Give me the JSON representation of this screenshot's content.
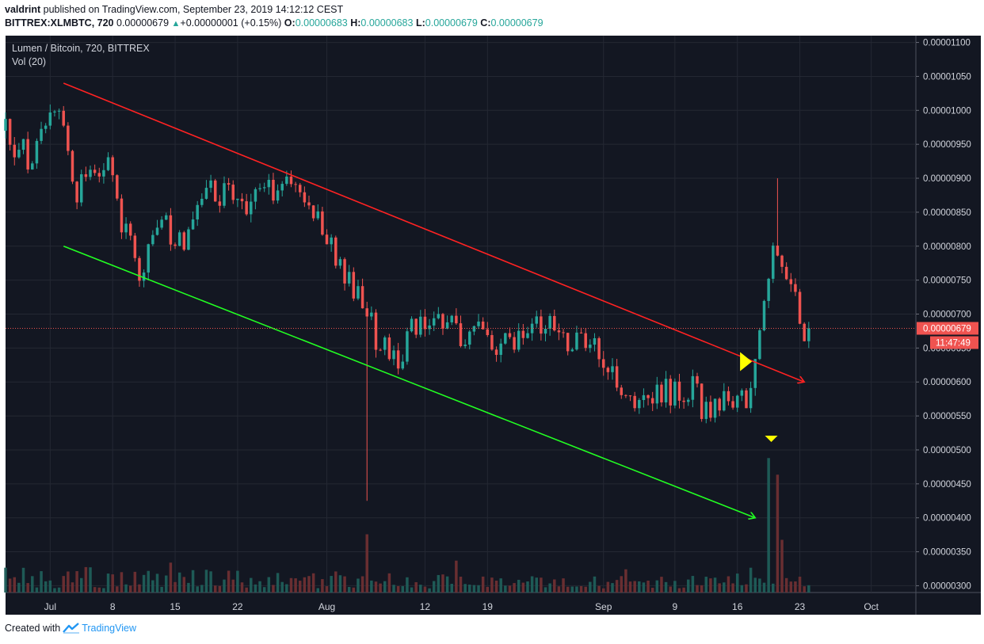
{
  "header": {
    "author": "valdrint",
    "published": "published on TradingView.com, September 23, 2019 14:12:12 CEST",
    "symbol": "BITTREX:XLMBTC, 720",
    "last": "0.00000679",
    "change": "+0.00000001 (+0.15%)",
    "o_label": "O:",
    "o_val": "0.00000683",
    "h_label": "H:",
    "h_val": "0.00000683",
    "l_label": "L:",
    "l_val": "0.00000679",
    "c_label": "C:",
    "c_val": "0.00000679"
  },
  "legend": {
    "title": "Lumen / Bitcoin, 720, BITTREX",
    "vol": "Vol (20)"
  },
  "price_badge": "0.00000679",
  "countdown": "11:47:49",
  "footer": {
    "created": "Created with",
    "brand": "TradingView"
  },
  "colors": {
    "bg": "#131722",
    "up": "#26a69a",
    "down": "#ef5350",
    "grid": "#242833",
    "trend_upper": "#ff2222",
    "trend_lower": "#22ff22",
    "marker": "#ffff00"
  },
  "chart_data": {
    "type": "candlestick",
    "yaxis": {
      "ticks": [
        "0.00001100",
        "0.00001050",
        "0.00001000",
        "0.00000950",
        "0.00000900",
        "0.00000850",
        "0.00000800",
        "0.00000750",
        "0.00000700",
        "0.00000650",
        "0.00000600",
        "0.00000550",
        "0.00000500",
        "0.00000450",
        "0.00000400",
        "0.00000350",
        "0.00000300"
      ],
      "range": [
        2.9e-06,
        1.11e-05
      ]
    },
    "xaxis": {
      "labels": [
        "Jul",
        "8",
        "15",
        "22",
        "Aug",
        "12",
        "19",
        "Sep",
        "9",
        "16",
        "23",
        "Oct"
      ],
      "label_positions_days": [
        0,
        7,
        14,
        21,
        31,
        42,
        49,
        62,
        70,
        77,
        84,
        92
      ],
      "range_days": [
        -5,
        97
      ],
      "start": "2019-07-01"
    },
    "candle_interval": "720",
    "price_anchors": [
      {
        "day": -5,
        "price": 9.7e-06
      },
      {
        "day": -4,
        "price": 9.2e-06
      },
      {
        "day": -3,
        "price": 9.5e-06
      },
      {
        "day": -2,
        "price": 9.1e-06
      },
      {
        "day": -1,
        "price": 9.6e-06
      },
      {
        "day": 0,
        "price": 9.85e-06
      },
      {
        "day": 1,
        "price": 1.005e-05
      },
      {
        "day": 2,
        "price": 9.5e-06
      },
      {
        "day": 3,
        "price": 8.8e-06
      },
      {
        "day": 5,
        "price": 9.1e-06
      },
      {
        "day": 6,
        "price": 9.25e-06
      },
      {
        "day": 7,
        "price": 9e-06
      },
      {
        "day": 8,
        "price": 8.3e-06
      },
      {
        "day": 10,
        "price": 7.62e-06
      },
      {
        "day": 11,
        "price": 7.9e-06
      },
      {
        "day": 12,
        "price": 8.32e-06
      },
      {
        "day": 14,
        "price": 8.22e-06
      },
      {
        "day": 15,
        "price": 7.9e-06
      },
      {
        "day": 16,
        "price": 8.4e-06
      },
      {
        "day": 17,
        "price": 8.8e-06
      },
      {
        "day": 18,
        "price": 8.85e-06
      },
      {
        "day": 20,
        "price": 8.7e-06
      },
      {
        "day": 22,
        "price": 8.55e-06
      },
      {
        "day": 24,
        "price": 8.75e-06
      },
      {
        "day": 26,
        "price": 8.92e-06
      },
      {
        "day": 28,
        "price": 8.8e-06
      },
      {
        "day": 30,
        "price": 8.58e-06
      },
      {
        "day": 31,
        "price": 8.15e-06
      },
      {
        "day": 33,
        "price": 7.65e-06
      },
      {
        "day": 35,
        "price": 7.2e-06
      },
      {
        "day": 36,
        "price": 6.8e-06
      },
      {
        "day": 37,
        "price": 6.5e-06
      },
      {
        "day": 39,
        "price": 6.3e-06
      },
      {
        "day": 40,
        "price": 6.68e-06
      },
      {
        "day": 42,
        "price": 6.8e-06
      },
      {
        "day": 44,
        "price": 6.92e-06
      },
      {
        "day": 46,
        "price": 6.68e-06
      },
      {
        "day": 48,
        "price": 6.8e-06
      },
      {
        "day": 50,
        "price": 6.5e-06
      },
      {
        "day": 52,
        "price": 6.7e-06
      },
      {
        "day": 54,
        "price": 6.98e-06
      },
      {
        "day": 56,
        "price": 6.78e-06
      },
      {
        "day": 58,
        "price": 6.65e-06
      },
      {
        "day": 60,
        "price": 6.55e-06
      },
      {
        "day": 62,
        "price": 6.4e-06
      },
      {
        "day": 63,
        "price": 6.05e-06
      },
      {
        "day": 65,
        "price": 5.8e-06
      },
      {
        "day": 67,
        "price": 5.62e-06
      },
      {
        "day": 68,
        "price": 5.75e-06
      },
      {
        "day": 70,
        "price": 5.9e-06
      },
      {
        "day": 72,
        "price": 5.87e-06
      },
      {
        "day": 73,
        "price": 5.68e-06
      },
      {
        "day": 75,
        "price": 5.62e-06
      },
      {
        "day": 77,
        "price": 5.72e-06
      },
      {
        "day": 78,
        "price": 5.8e-06
      },
      {
        "day": 79,
        "price": 6.2e-06
      },
      {
        "day": 80,
        "price": 7e-06
      },
      {
        "day": 81,
        "price": 8.2e-06
      },
      {
        "day": 82,
        "price": 7.9e-06
      },
      {
        "day": 83,
        "price": 7.3e-06
      },
      {
        "day": 84,
        "price": 7e-06
      },
      {
        "day": 84.5,
        "price": 6.8e-06
      },
      {
        "day": 85,
        "price": 6.79e-06
      }
    ],
    "spikes": [
      {
        "day": 35.3,
        "low": 4.25e-06
      },
      {
        "day": 81.3,
        "high": 9e-06
      }
    ],
    "volume_spikes": [
      {
        "day": 35.5,
        "frac": 0.42
      },
      {
        "day": 80.7,
        "frac": 0.97
      },
      {
        "day": 81.4,
        "frac": 0.85
      },
      {
        "day": 82.2,
        "frac": 0.38
      }
    ],
    "trend_lines": [
      {
        "name": "upper",
        "from": {
          "day": 1.5,
          "price": 1.04e-05
        },
        "to": {
          "day": 84.5,
          "price": 6e-06
        }
      },
      {
        "name": "lower",
        "from": {
          "day": 1.5,
          "price": 8e-06
        },
        "to": {
          "day": 79,
          "price": 4e-06
        }
      }
    ],
    "last_price": 6.79e-06
  }
}
